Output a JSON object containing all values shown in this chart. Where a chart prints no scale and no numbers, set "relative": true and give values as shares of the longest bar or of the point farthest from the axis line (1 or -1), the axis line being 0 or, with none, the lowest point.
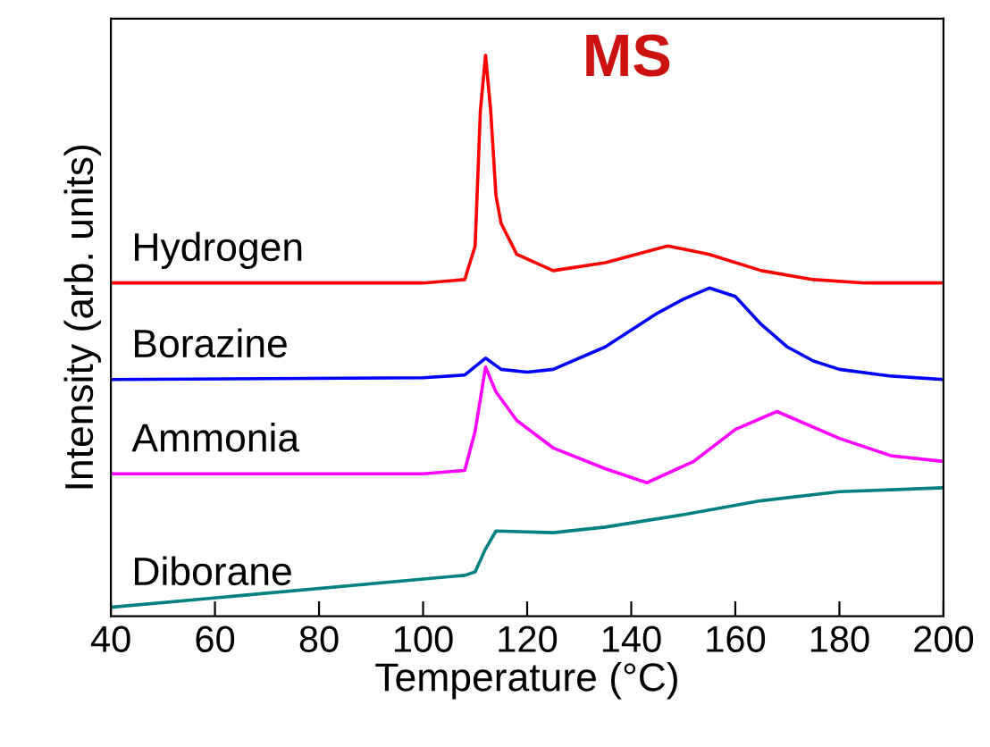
{
  "chart_data": {
    "type": "line",
    "relative": true,
    "xlabel": "Temperature (°C)",
    "ylabel": "Intensity (arb. units)",
    "xlim": [
      40,
      200
    ],
    "xticks": [
      40,
      60,
      80,
      100,
      120,
      140,
      160,
      180,
      200
    ],
    "tick_labels": "x",
    "grid": false,
    "legend": false,
    "marker": "none",
    "line_style": "solid",
    "annotations": [
      "MS"
    ],
    "series": [
      {
        "name": "Hydrogen",
        "color": "#ff0000",
        "x": [
          40,
          100,
          108,
          110,
          111,
          112,
          113,
          114,
          115,
          118,
          125,
          135,
          147,
          155,
          165,
          175,
          185,
          200
        ],
        "values": [
          0.594,
          0.594,
          0.6,
          0.66,
          0.9,
          1.0,
          0.9,
          0.75,
          0.7,
          0.645,
          0.616,
          0.63,
          0.66,
          0.645,
          0.616,
          0.6,
          0.594,
          0.594
        ]
      },
      {
        "name": "Borazine",
        "color": "#0000ff",
        "x": [
          40,
          100,
          108,
          112,
          115,
          120,
          125,
          135,
          145,
          150,
          155,
          160,
          165,
          170,
          175,
          180,
          190,
          200
        ],
        "values": [
          0.422,
          0.425,
          0.43,
          0.46,
          0.44,
          0.435,
          0.44,
          0.48,
          0.54,
          0.565,
          0.585,
          0.57,
          0.52,
          0.48,
          0.455,
          0.44,
          0.428,
          0.422
        ]
      },
      {
        "name": "Ammonia",
        "color": "#ff00ff",
        "x": [
          40,
          100,
          108,
          110,
          112,
          114,
          118,
          125,
          135,
          143,
          152,
          160,
          168,
          180,
          190,
          200
        ],
        "values": [
          0.254,
          0.254,
          0.26,
          0.33,
          0.444,
          0.4,
          0.349,
          0.3,
          0.263,
          0.238,
          0.276,
          0.333,
          0.365,
          0.317,
          0.286,
          0.276
        ]
      },
      {
        "name": "Diborane",
        "color": "#008080",
        "x": [
          40,
          108,
          110,
          112,
          114,
          125,
          135,
          150,
          165,
          180,
          200
        ],
        "values": [
          0.016,
          0.073,
          0.079,
          0.12,
          0.152,
          0.149,
          0.159,
          0.181,
          0.206,
          0.222,
          0.229
        ]
      }
    ]
  }
}
